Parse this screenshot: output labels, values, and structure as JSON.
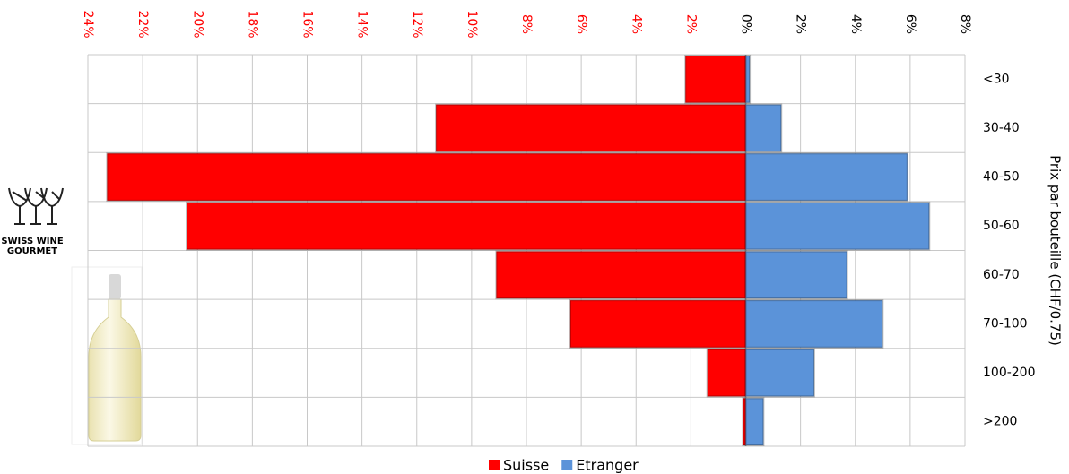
{
  "chart_data": {
    "type": "pyramid",
    "y_label": "Prix par bouteille (CHF/0.75)",
    "logo": [
      "SWISS WINE",
      "GOURMET"
    ],
    "categories": [
      "<30",
      "30-40",
      "40-50",
      "50-60",
      "60-70",
      "70-100",
      "100-200",
      ">200"
    ],
    "series": [
      {
        "name": "Suisse",
        "color": "#ff0000",
        "side": "left",
        "values": [
          2.2,
          11.3,
          23.3,
          20.4,
          9.1,
          6.4,
          1.4,
          0.1
        ]
      },
      {
        "name": "Etranger",
        "color": "#5b93d9",
        "side": "right",
        "values": [
          0.15,
          1.3,
          5.9,
          6.7,
          3.7,
          5.0,
          2.5,
          0.65
        ]
      }
    ],
    "xlim": [
      -24,
      8
    ],
    "xticks": [
      {
        "value": -24,
        "label": "24%"
      },
      {
        "value": -22,
        "label": "22%"
      },
      {
        "value": -20,
        "label": "20%"
      },
      {
        "value": -18,
        "label": "18%"
      },
      {
        "value": -16,
        "label": "16%"
      },
      {
        "value": -14,
        "label": "14%"
      },
      {
        "value": -12,
        "label": "12%"
      },
      {
        "value": -10,
        "label": "10%"
      },
      {
        "value": -8,
        "label": "8%"
      },
      {
        "value": -6,
        "label": "6%"
      },
      {
        "value": -4,
        "label": "4%"
      },
      {
        "value": -2,
        "label": "2%"
      },
      {
        "value": 0,
        "label": "0%"
      },
      {
        "value": 2,
        "label": "2%"
      },
      {
        "value": 4,
        "label": "4%"
      },
      {
        "value": 6,
        "label": "6%"
      },
      {
        "value": 8,
        "label": "8%"
      }
    ],
    "grid": true
  }
}
